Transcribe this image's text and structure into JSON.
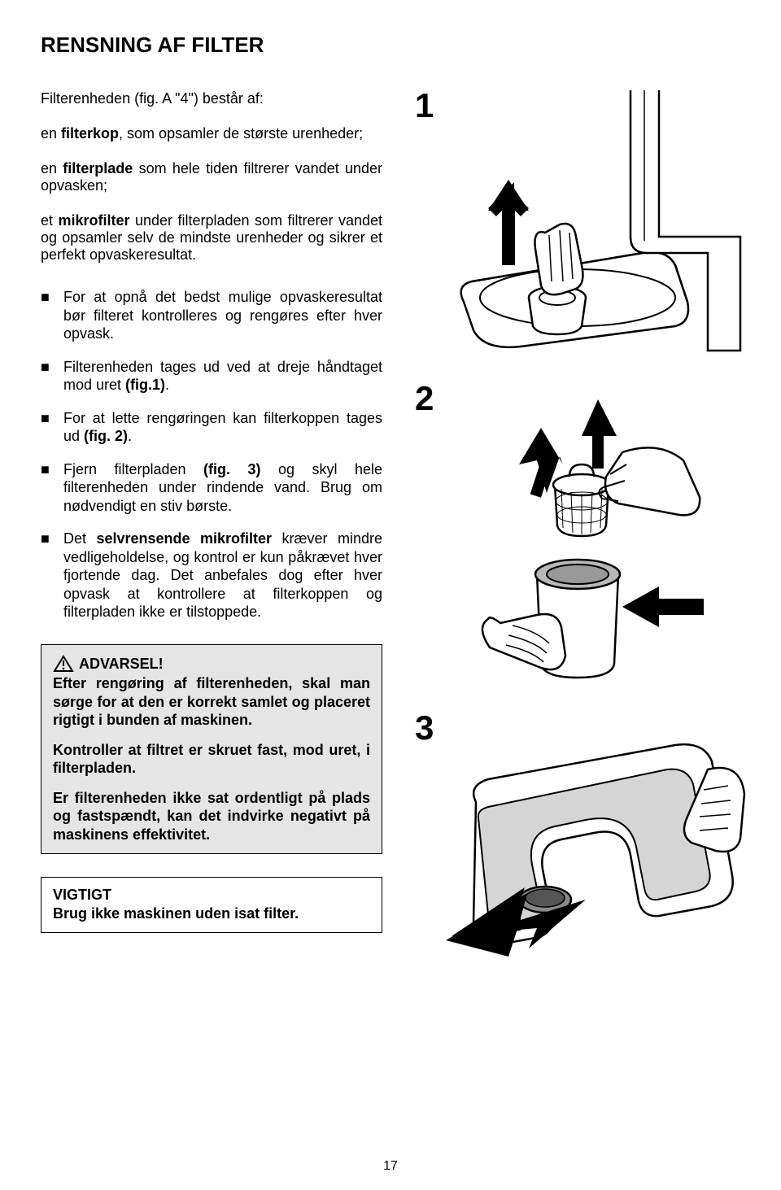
{
  "title": "RENSNING AF FILTER",
  "intro": "Filterenheden (fig. A \"4\") består af:",
  "components": [
    {
      "prefix": "en ",
      "bold": "filterkop",
      "rest": ", som opsamler de største urenheder;"
    },
    {
      "prefix": "en ",
      "bold": "filterplade",
      "rest": " som hele tiden filtrerer vandet under opvasken;"
    },
    {
      "prefix": "et ",
      "bold": "mikrofilter",
      "rest": " under filterpladen som filtrerer vandet og opsamler selv de mindste urenheder og sikrer et perfekt opvaskeresultat."
    }
  ],
  "bullets": [
    "For at opnå det bedst mulige opvaskeresultat bør filteret kontrolleres og rengøres efter hver opvask.",
    "Filterenheden tages ud ved at dreje håndtaget mod uret <b>(fig.1)</b>.",
    "For at lette rengøringen kan filterkoppen tages ud <b>(fig. 2)</b>.",
    "Fjern filterpladen <b>(fig. 3)</b> og skyl hele filterenheden under rindende vand. Brug om nødvendigt en stiv børste.",
    "Det <b>selvrensende mikrofilter</b> kræver mindre vedligeholdelse, og kontrol er kun påkrævet hver fjortende dag. Det anbefales dog efter hver opvask at kontrollere at filterkoppen og filterpladen ikke er tilstoppede."
  ],
  "warning": {
    "head": "ADVARSEL!",
    "p1": "Efter rengøring af filterenheden, skal man sørge for at den er korrekt samlet og placeret rigtigt i bunden af maskinen.",
    "p2": "Kontroller at filtret er skruet fast, mod uret, i filterpladen.",
    "p3": "Er filterenheden ikke sat ordentligt på plads og fastspændt, kan det indvirke negativt på maskinens effektivitet."
  },
  "important": {
    "head": "VIGTIGT",
    "body": "Brug ikke maskinen uden isat filter."
  },
  "figures": {
    "f1": "1",
    "f2": "2",
    "f3": "3"
  },
  "page_number": "17",
  "colors": {
    "bg": "#ffffff",
    "text": "#000000",
    "box_bg": "#e5e5e5",
    "stroke": "#000000"
  }
}
